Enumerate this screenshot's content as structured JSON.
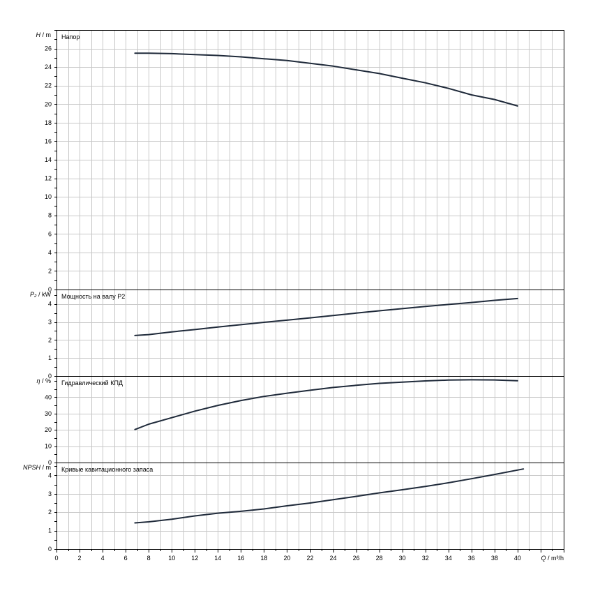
{
  "chart_data": {
    "type": "line",
    "x_axis": {
      "symbol": "Q",
      "unit": "m³/h",
      "range": [
        0,
        44
      ],
      "ticks": [
        0,
        2,
        4,
        6,
        8,
        10,
        12,
        14,
        16,
        18,
        20,
        22,
        24,
        26,
        28,
        30,
        32,
        34,
        36,
        38,
        40
      ]
    },
    "grid": true,
    "panels": [
      {
        "id": "head",
        "title": "Напор",
        "y_symbol": "H",
        "y_unit": "m",
        "ylim": [
          0,
          28
        ],
        "yticks": [
          0,
          2,
          4,
          6,
          8,
          10,
          12,
          14,
          16,
          18,
          20,
          22,
          24,
          26
        ],
        "series": [
          {
            "x": [
              6.8,
              8,
              10,
              12,
              14,
              16,
              18,
              20,
              22,
              24,
              26,
              28,
              30,
              32,
              34,
              36,
              38,
              40
            ],
            "y": [
              25.5,
              25.5,
              25.45,
              25.35,
              25.25,
              25.1,
              24.9,
              24.7,
              24.4,
              24.1,
              23.7,
              23.3,
              22.8,
              22.3,
              21.7,
              21.0,
              20.5,
              19.8
            ]
          }
        ]
      },
      {
        "id": "power",
        "title": "Мощность на валу P2",
        "y_symbol": "P₂",
        "y_unit": "kW",
        "ylim": [
          0,
          4.8
        ],
        "yticks": [
          0,
          1,
          2,
          3,
          4
        ],
        "series": [
          {
            "x": [
              6.8,
              8,
              10,
              12,
              14,
              16,
              18,
              20,
              22,
              24,
              26,
              28,
              30,
              32,
              34,
              36,
              38,
              40
            ],
            "y": [
              2.25,
              2.3,
              2.45,
              2.58,
              2.72,
              2.85,
              2.98,
              3.1,
              3.23,
              3.36,
              3.49,
              3.62,
              3.74,
              3.86,
              3.97,
              4.08,
              4.2,
              4.3
            ]
          }
        ]
      },
      {
        "id": "efficiency",
        "title": "Гидравлический КПД",
        "y_symbol": "η",
        "y_unit": "%",
        "ylim": [
          0,
          53
        ],
        "yticks": [
          0,
          10,
          20,
          30,
          40
        ],
        "series": [
          {
            "x": [
              6.8,
              8,
              10,
              12,
              14,
              16,
              18,
              20,
              22,
              24,
              26,
              28,
              30,
              32,
              34,
              36,
              38,
              40
            ],
            "y": [
              20.2,
              23.5,
              27.5,
              31.5,
              35.0,
              38.0,
              40.5,
              42.5,
              44.3,
              46.0,
              47.3,
              48.5,
              49.3,
              50.0,
              50.5,
              50.7,
              50.6,
              50.1
            ]
          }
        ]
      },
      {
        "id": "npsh",
        "title": "Кривые кавитационного запаса",
        "y_symbol": "NPSH",
        "y_unit": "m",
        "ylim": [
          0,
          4.7
        ],
        "yticks": [
          0,
          1,
          2,
          3,
          4
        ],
        "series": [
          {
            "x": [
              6.8,
              8,
              10,
              12,
              14,
              16,
              18,
              20,
              22,
              24,
              26,
              28,
              30,
              32,
              34,
              36,
              38,
              40.5
            ],
            "y": [
              1.42,
              1.48,
              1.62,
              1.8,
              1.95,
              2.05,
              2.18,
              2.35,
              2.5,
              2.68,
              2.86,
              3.05,
              3.22,
              3.4,
              3.6,
              3.82,
              4.05,
              4.35
            ]
          }
        ]
      }
    ]
  }
}
